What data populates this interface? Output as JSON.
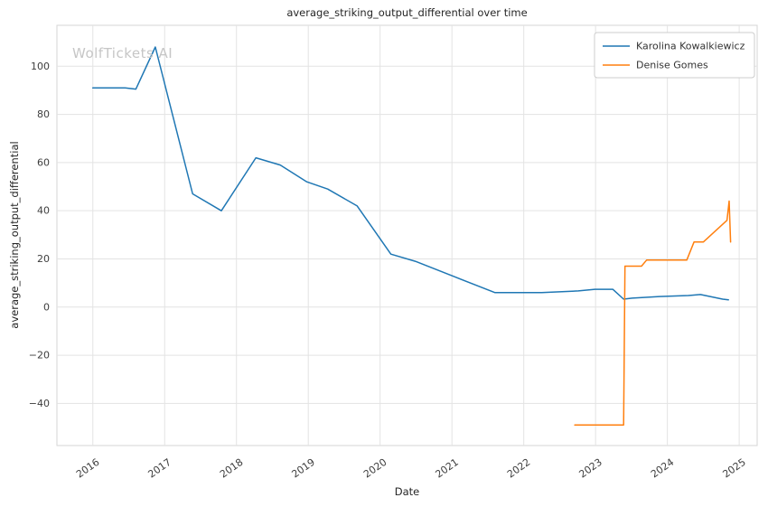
{
  "chart_data": {
    "type": "line",
    "title": "average_striking_output_differential over time",
    "xlabel": "Date",
    "ylabel": "average_striking_output_differential",
    "watermark": "WolfTickets AI",
    "grid": true,
    "legend_position": "upper right",
    "xlim": [
      2015.5,
      2025.25
    ],
    "ylim": [
      -57.5,
      117
    ],
    "xticks": [
      2016,
      2017,
      2018,
      2019,
      2020,
      2021,
      2022,
      2023,
      2024,
      2025
    ],
    "yticks": [
      -40,
      -20,
      0,
      20,
      40,
      60,
      80,
      100
    ],
    "series": [
      {
        "name": "Karolina Kowalkiewicz",
        "color": "#1f77b4",
        "x": [
          2016.0,
          2016.45,
          2016.6,
          2016.87,
          2017.39,
          2017.79,
          2018.27,
          2018.61,
          2018.98,
          2019.27,
          2019.68,
          2020.15,
          2020.49,
          2021.0,
          2021.6,
          2022.25,
          2022.76,
          2022.99,
          2023.24,
          2023.39,
          2023.51,
          2023.89,
          2024.29,
          2024.46,
          2024.77,
          2024.85
        ],
        "y": [
          91,
          91,
          90.5,
          108,
          47,
          40,
          62,
          59,
          52,
          49,
          42,
          22,
          19,
          13,
          6,
          6,
          6.7,
          7.4,
          7.4,
          3.3,
          3.7,
          4.4,
          4.8,
          5.2,
          3.3,
          3.0
        ]
      },
      {
        "name": "Denise Gomes",
        "color": "#ff7f0e",
        "x": [
          2022.71,
          2023.39,
          2023.41,
          2023.64,
          2023.71,
          2024.27,
          2024.37,
          2024.5,
          2024.83,
          2024.86,
          2024.88
        ],
        "y": [
          -49,
          -49,
          17,
          17,
          19.5,
          19.5,
          27,
          27,
          36,
          44,
          27
        ]
      }
    ]
  }
}
